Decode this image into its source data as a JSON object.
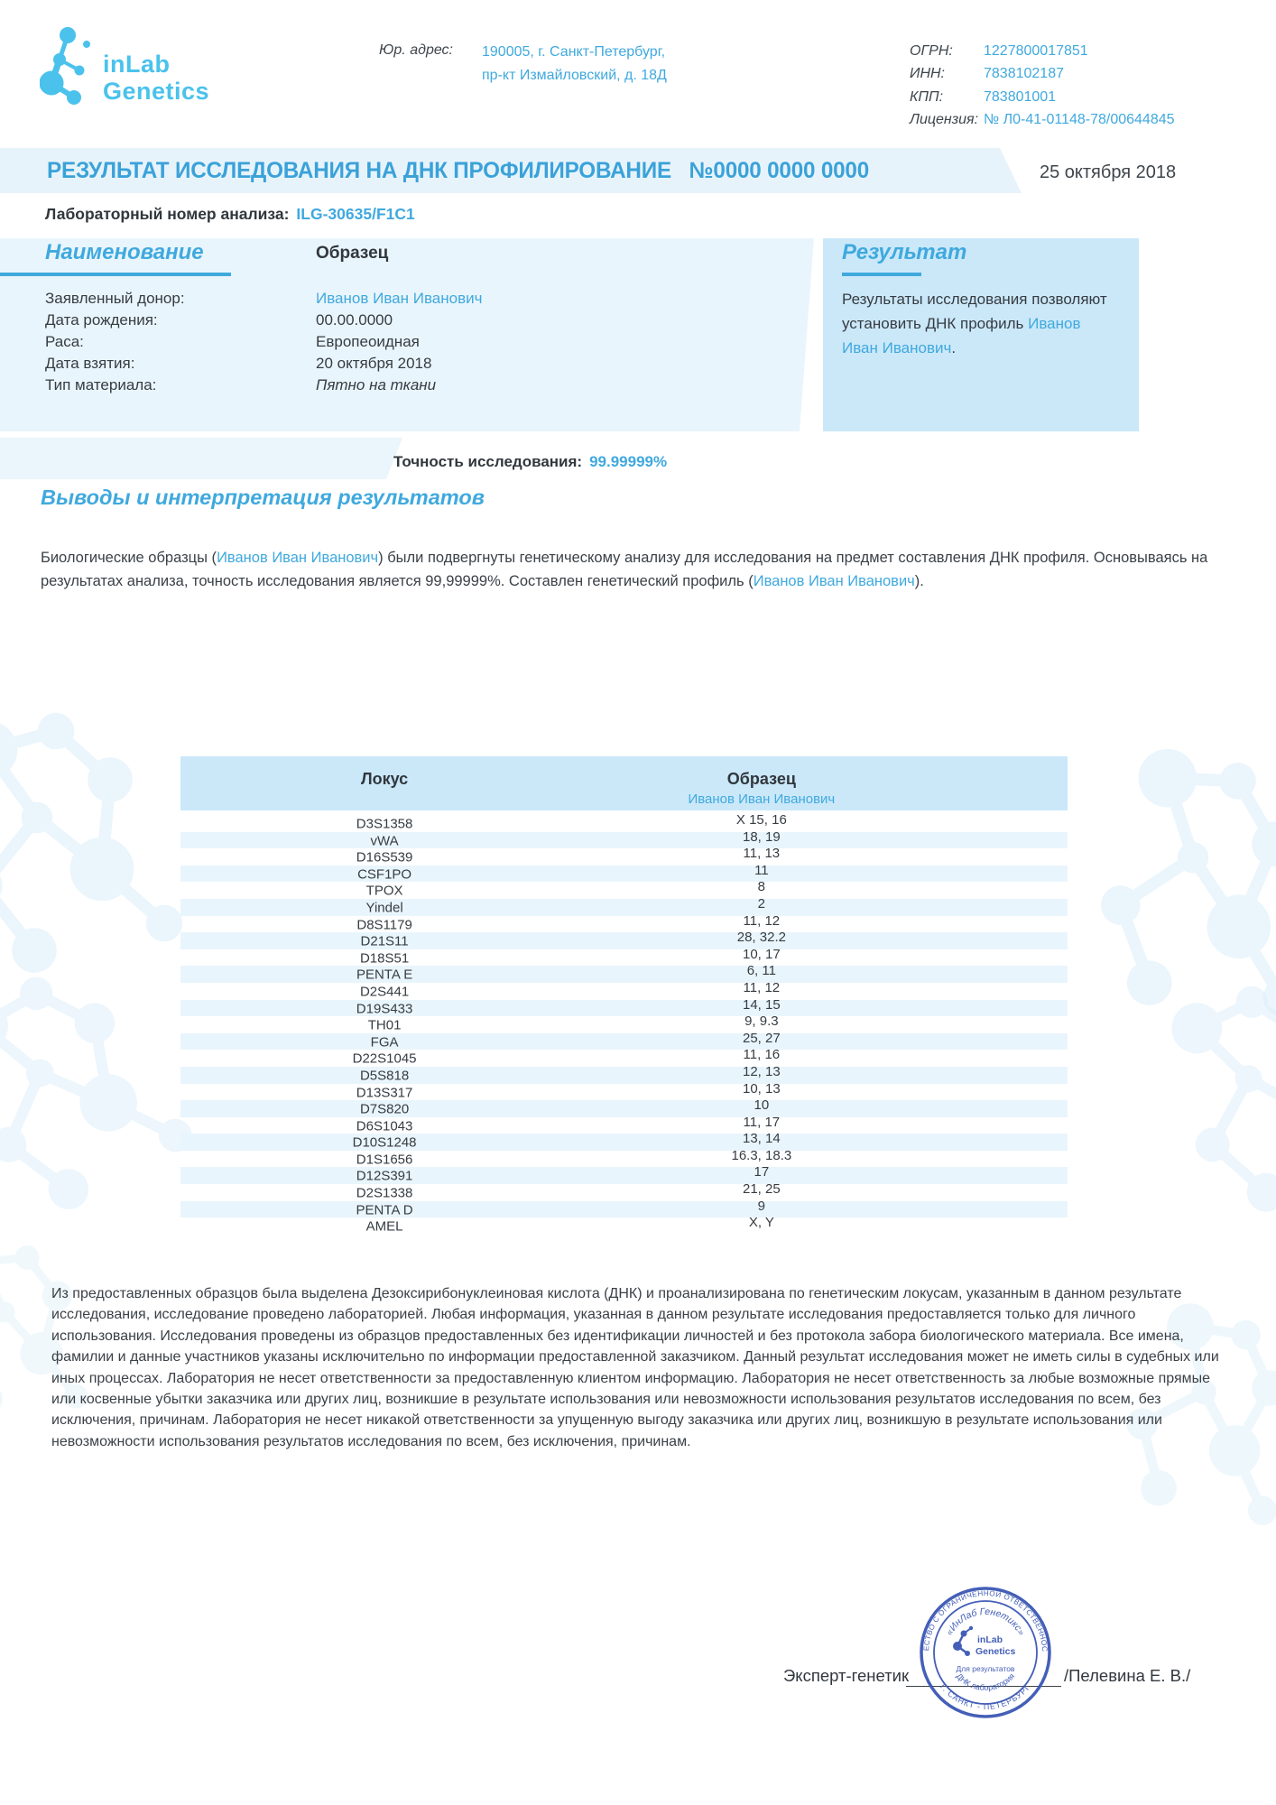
{
  "header": {
    "logo": {
      "line1": "inLab",
      "line2": "Genetics"
    },
    "legal_address_label": "Юр. адрес:",
    "legal_address_line1": "190005, г. Санкт-Петербург,",
    "legal_address_line2": "пр-кт Измайловский, д. 18Д",
    "registry": [
      {
        "label": "ОГРН:",
        "value": "1227800017851"
      },
      {
        "label": "ИНН:",
        "value": "7838102187"
      },
      {
        "label": "КПП:",
        "value": "783801001"
      },
      {
        "label": "Лицензия:",
        "value": "№ Л0-41-01148-78/00644845"
      }
    ]
  },
  "title_bar": {
    "title": "РЕЗУЛЬТАТ ИССЛЕДОВАНИЯ НА ДНК ПРОФИЛИРОВАНИЕ   №0000 0000 0000",
    "date": "25 октября 2018"
  },
  "lab_number": {
    "label": "Лабораторный номер анализа:",
    "value": "ILG-30635/F1C1"
  },
  "sample_panel": {
    "name_heading": "Наименование",
    "sample_heading": "Образец",
    "rows": [
      {
        "label": "Заявленный донор:",
        "value": "Иванов Иван Иванович",
        "accent": true
      },
      {
        "label": "Дата рождения:",
        "value": "00.00.0000"
      },
      {
        "label": "Раса:",
        "value": "Европеоидная"
      },
      {
        "label": "Дата взятия:",
        "value": "20 октября 2018"
      },
      {
        "label": "Тип материала:",
        "value": "Пятно на ткани",
        "italic": true
      }
    ]
  },
  "result_panel": {
    "heading": "Результат",
    "text_before": "Результаты исследования позволяют установить ДНК профиль ",
    "name": "Иванов Иван Иванович",
    "text_after": "."
  },
  "accuracy": {
    "label": "Точность исследования:",
    "value": "99.99999%"
  },
  "conclusions": {
    "heading": "Выводы и интерпретация результатов",
    "p1_before": "Биологические образцы (",
    "p1_name1": "Иванов Иван Иванович",
    "p1_mid": ") были подвергнуты генетическому анализу для исследования на предмет составления ДНК профиля. Основываясь на результатах анализа, точность исследования является 99,99999%. Составлен генетический профиль (",
    "p1_name2": "Иванов Иван Иванович",
    "p1_after": ")."
  },
  "loci_table": {
    "col1": "Локус",
    "col2": "Образец",
    "col2_sub": "Иванов Иван Иванович",
    "rows": [
      [
        "D3S1358",
        "X 15, 16"
      ],
      [
        "vWA",
        "18, 19"
      ],
      [
        "D16S539",
        "11, 13"
      ],
      [
        "CSF1PO",
        "11"
      ],
      [
        "TPOX",
        "8"
      ],
      [
        "Yindel",
        "2"
      ],
      [
        "D8S1179",
        "11, 12"
      ],
      [
        "D21S11",
        "28, 32.2"
      ],
      [
        "D18S51",
        "10, 17"
      ],
      [
        "PENTA E",
        "6, 11"
      ],
      [
        "D2S441",
        "11, 12"
      ],
      [
        "D19S433",
        "14, 15"
      ],
      [
        "TH01",
        "9, 9.3"
      ],
      [
        "FGA",
        "25, 27"
      ],
      [
        "D22S1045",
        "11, 16"
      ],
      [
        "D5S818",
        "12, 13"
      ],
      [
        "D13S317",
        "10, 13"
      ],
      [
        "D7S820",
        "10"
      ],
      [
        "D6S1043",
        "11, 17"
      ],
      [
        "D10S1248",
        "13, 14"
      ],
      [
        "D1S1656",
        "16.3, 18.3"
      ],
      [
        "D12S391",
        "17"
      ],
      [
        "D2S1338",
        "21, 25"
      ],
      [
        "PENTA D",
        "9"
      ],
      [
        "AMEL",
        "X, Y"
      ]
    ]
  },
  "disclaimer": "Из предоставленных образцов была выделена Дезоксирибонуклеиновая кислота (ДНК) и проанализирована по генетическим локусам, указанным в данном результате исследования, исследование проведено лабораторией. Любая информация, указанная в данном результате исследования предоставляется только для личного использования. Исследования проведены из образцов предоставленных без идентификации личностей и без протокола забора биологического материала.  Все имена, фамилии и данные участников указаны исключительно по информации предоставленной заказчиком. Данный результат исследования может не иметь силы в судебных или иных процессах. Лаборатория не несет ответственности за предоставленную клиентом информацию. Лаборатория не несет ответственность за любые возможные прямые или косвенные убытки заказчика или других лиц, возникшие в результате использования или невозможности использования результатов исследования по всем, без исключения, причинам.  Лаборатория не несет никакой ответственности за упущенную выгоду заказчика или других лиц, возникшую в результате использования или невозможности использования результатов исследования по всем, без исключения, причинам.",
  "signature": {
    "role": "Эксперт-генетик",
    "name": "/Пелевина Е. В./"
  },
  "stamp": {
    "outer_top": "ОБЩЕСТВО С ОГРАНИЧЕННОЙ ОТВЕТСТВЕННОСТЬЮ",
    "outer_bottom": "Г. САНКТ - ПЕТЕРБУРГ",
    "inner_top": "«ИнЛаб Генетикс»",
    "logo1": "inLab",
    "logo2": "Genetics",
    "line1": "Для результатов",
    "inner_bottom": "ДНК лаборатория"
  },
  "colors": {
    "accent": "#3fa9de",
    "logo_cyan": "#4ac2ec",
    "stamp_blue": "#3a57b4",
    "band": "#e7f3fb"
  }
}
